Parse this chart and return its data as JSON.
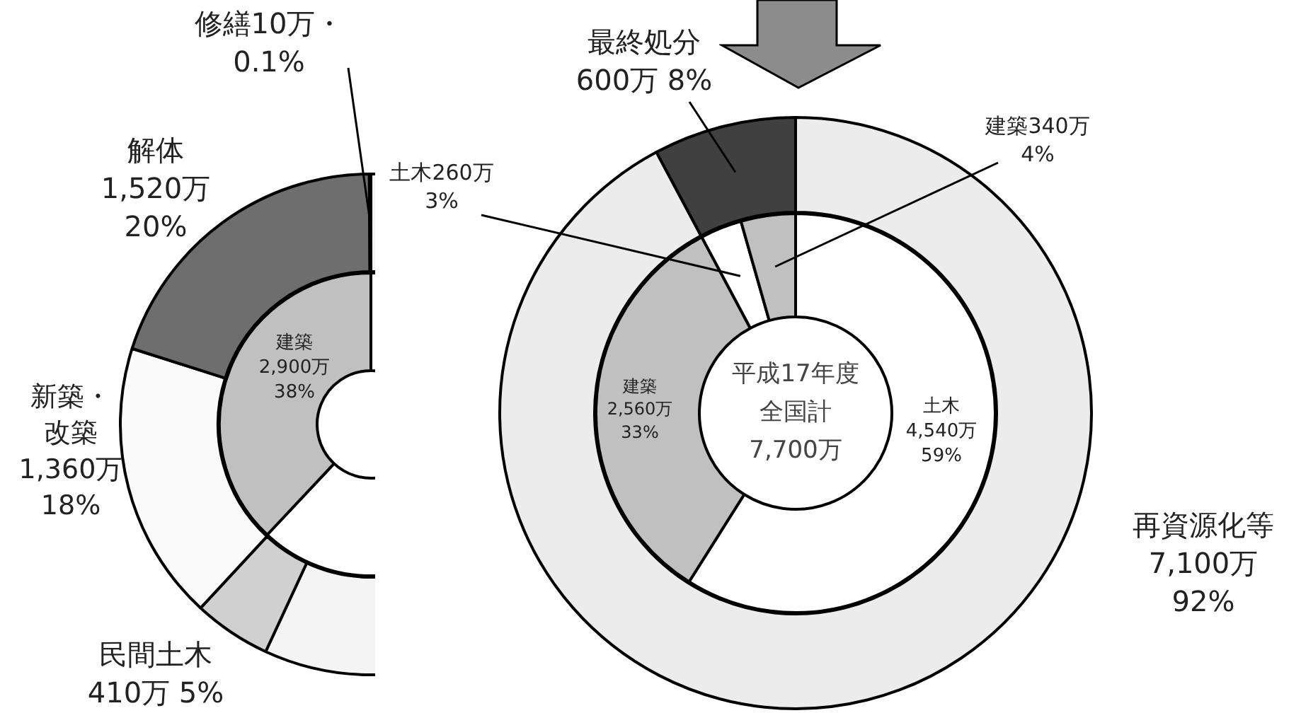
{
  "chart_data": [
    {
      "type": "donut",
      "categories": [
        null,
        "民間土木",
        "新築・改築",
        "解体",
        "修繕"
      ],
      "values": [
        56.9,
        5,
        18,
        20,
        0.1
      ],
      "colors": [
        "#f4f4f4",
        "#d0d0d0",
        "#fafafa",
        "#6e6e6e",
        "#202020"
      ],
      "value_labels": [
        null,
        "410万 5%",
        "1,360万\n18%",
        "1,520万\n20%",
        "10万・\n0.1%"
      ]
    },
    {
      "type": "donut",
      "categories": [
        null,
        "建築"
      ],
      "values": [
        62,
        38
      ],
      "colors": [
        "#ffffff",
        "#c0c0c0"
      ],
      "value_labels": [
        null,
        "2,900万\n38%"
      ]
    },
    {
      "type": "donut",
      "categories": [
        "再資源化等",
        "最終処分"
      ],
      "values": [
        7100,
        600
      ],
      "colors": [
        "#ececec",
        "#404040"
      ],
      "value_labels": [
        "7,100万\n92%",
        "600万 8%"
      ]
    },
    {
      "type": "donut",
      "annotations": [
        "平成17年度",
        "全国計",
        "7,700万"
      ],
      "categories": [
        "土木",
        "建築",
        "土木",
        "建築"
      ],
      "values": [
        4540,
        2560,
        260,
        340
      ],
      "colors": [
        "#ffffff",
        "#c0c0c0",
        "#ffffff",
        "#c0c0c0"
      ],
      "value_labels": [
        "4,540万\n59%",
        "2,560万\n33%",
        "260万\n3%",
        "340万\n4%"
      ]
    }
  ]
}
